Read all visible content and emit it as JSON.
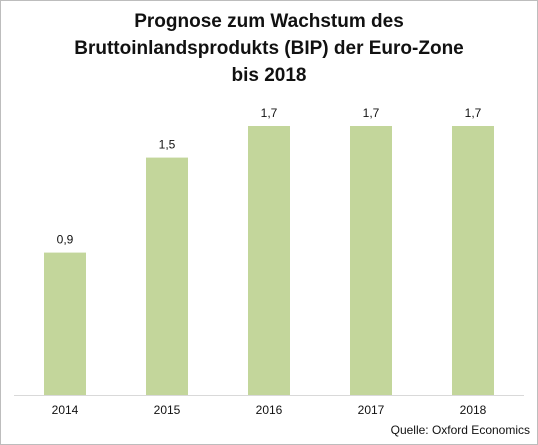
{
  "chart_data": {
    "type": "bar",
    "title_lines": [
      "Prognose zum Wachstum des",
      "Bruttoinlandsprodukts (BIP) der Euro-Zone",
      "bis 2018"
    ],
    "categories": [
      "2014",
      "2015",
      "2016",
      "2017",
      "2018"
    ],
    "values": [
      0.9,
      1.5,
      1.7,
      1.7,
      1.7
    ],
    "data_labels": [
      "0,9",
      "1,5",
      "1,7",
      "1,7",
      "1,7"
    ],
    "xlabel": "",
    "ylabel": "",
    "ylim": [
      0,
      1.7
    ],
    "grid": false,
    "legend": "none",
    "bar_color": "#c3d69b"
  },
  "source": "Quelle: Oxford Economics"
}
